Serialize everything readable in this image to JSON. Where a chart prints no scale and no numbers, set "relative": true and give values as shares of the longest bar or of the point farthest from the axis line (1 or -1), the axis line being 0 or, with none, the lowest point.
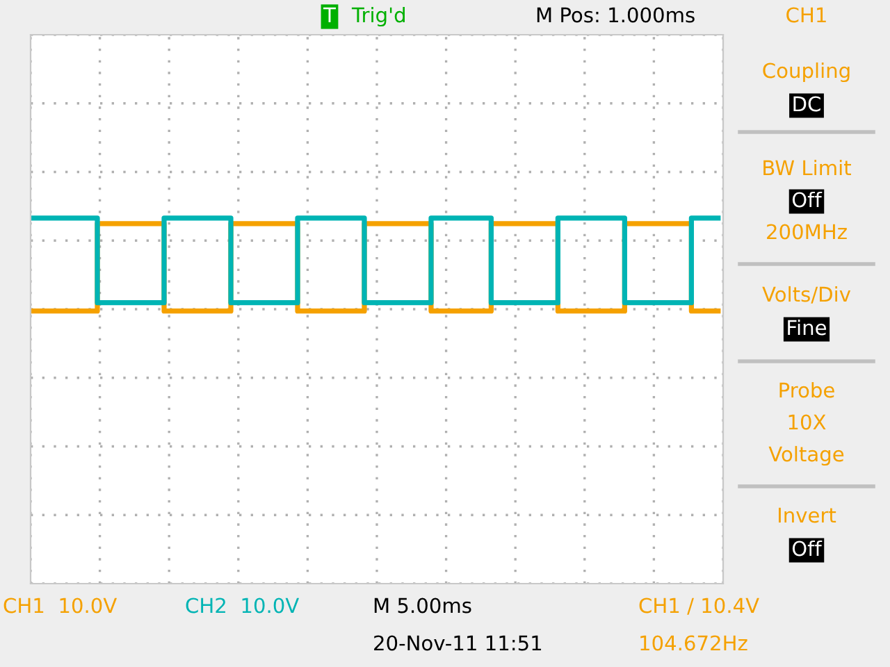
{
  "chart_data": {
    "type": "step",
    "relative": true,
    "grid": true,
    "tick_labels": false,
    "line_style": "solid",
    "marker": "none",
    "categories": [
      null,
      null,
      null,
      null,
      null,
      null,
      null,
      null,
      null,
      null,
      null,
      null,
      null,
      null,
      null,
      null,
      null,
      null,
      null,
      null,
      null,
      null,
      null,
      null,
      null,
      null,
      null,
      null,
      null,
      null,
      null,
      null,
      null,
      null,
      null,
      null,
      null,
      null,
      null,
      null,
      null,
      null,
      null,
      null,
      null,
      null,
      null,
      null,
      null,
      null,
      null,
      null,
      null,
      null,
      null,
      null,
      null,
      null,
      null,
      null,
      null,
      null,
      null,
      null,
      null,
      null,
      null,
      null,
      null,
      null,
      null,
      null,
      null,
      null,
      null,
      null,
      null,
      null,
      null,
      null,
      null,
      null,
      null,
      null,
      null,
      null,
      null,
      null,
      null,
      null,
      null,
      null,
      null,
      null,
      null,
      null,
      null,
      null,
      null,
      null,
      null,
      null,
      null,
      null
    ],
    "series": [
      {
        "color": "#f5a100",
        "values": [
          0,
          0,
          0,
          0,
          0,
          0,
          0,
          0,
          0,
          0,
          0.94,
          0.94,
          0.94,
          0.94,
          0.94,
          0.94,
          0.94,
          0.94,
          0.94,
          0.94,
          0,
          0,
          0,
          0,
          0,
          0,
          0,
          0,
          0,
          0,
          0.94,
          0.94,
          0.94,
          0.94,
          0.94,
          0.94,
          0.94,
          0.94,
          0.94,
          0.94,
          0,
          0,
          0,
          0,
          0,
          0,
          0,
          0,
          0,
          0,
          0.94,
          0.94,
          0.94,
          0.94,
          0.94,
          0.94,
          0.94,
          0.94,
          0.94,
          0.94,
          0,
          0,
          0,
          0,
          0,
          0,
          0,
          0,
          0,
          0.94,
          0.94,
          0.94,
          0.94,
          0.94,
          0.94,
          0.94,
          0.94,
          0.94,
          0.94,
          0,
          0,
          0,
          0,
          0,
          0,
          0,
          0,
          0,
          0,
          0.94,
          0.94,
          0.94,
          0.94,
          0.94,
          0.94,
          0.94,
          0.94,
          0.94,
          0.94,
          0,
          0,
          0,
          0,
          0
        ]
      },
      {
        "color": "#00b4b4",
        "values": [
          1,
          1,
          1,
          1,
          1,
          1,
          1,
          1,
          1,
          1,
          0.09,
          0.09,
          0.09,
          0.09,
          0.09,
          0.09,
          0.09,
          0.09,
          0.09,
          0.09,
          1,
          1,
          1,
          1,
          1,
          1,
          1,
          1,
          1,
          1,
          0.09,
          0.09,
          0.09,
          0.09,
          0.09,
          0.09,
          0.09,
          0.09,
          0.09,
          0.09,
          1,
          1,
          1,
          1,
          1,
          1,
          1,
          1,
          1,
          1,
          0.09,
          0.09,
          0.09,
          0.09,
          0.09,
          0.09,
          0.09,
          0.09,
          0.09,
          0.09,
          1,
          1,
          1,
          1,
          1,
          1,
          1,
          1,
          1,
          0.09,
          0.09,
          0.09,
          0.09,
          0.09,
          0.09,
          0.09,
          0.09,
          0.09,
          0.09,
          1,
          1,
          1,
          1,
          1,
          1,
          1,
          1,
          1,
          1,
          0.09,
          0.09,
          0.09,
          0.09,
          0.09,
          0.09,
          0.09,
          0.09,
          0.09,
          0.09,
          1,
          1,
          1,
          1,
          1
        ]
      }
    ],
    "annotations": [
      "T",
      "Trig'd",
      "M Pos: 1.000ms",
      "CH1",
      "Coupling",
      "DC",
      "BW Limit",
      "Off",
      "200MHz",
      "Volts/Div",
      "Fine",
      "Probe",
      "10X",
      "Voltage",
      "Invert",
      "Off",
      "CH1  10.0V",
      "CH2  10.0V",
      "M 5.00ms",
      "20-Nov-11 11:51",
      "CH1 / 10.4V",
      "104.672Hz"
    ]
  }
}
